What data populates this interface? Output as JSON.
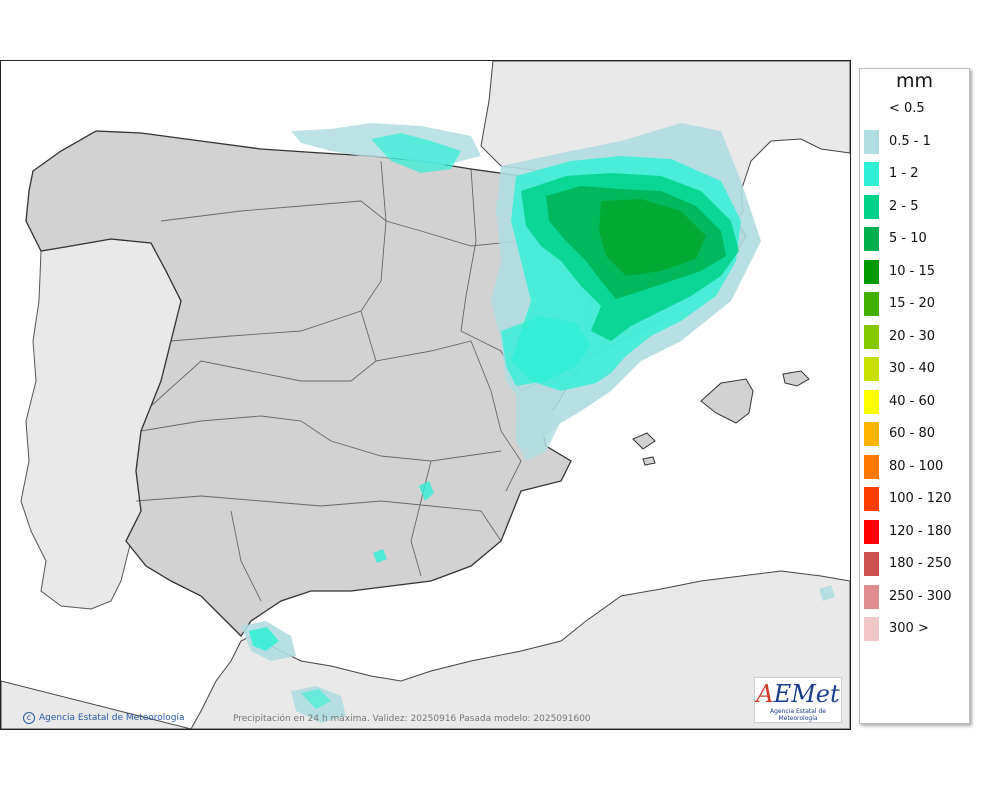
{
  "map": {
    "credit": "Agencia Estatal de Meteorología",
    "caption": "Precipitación en 24 h máxima. Validez: 20250916 Pasada modelo: 2025091600",
    "logo": {
      "text_main": "AEMet",
      "text_sub": "Agencia Estatal de Meteorología"
    }
  },
  "legend": {
    "unit": "mm",
    "items": [
      {
        "label": "< 0.5",
        "color": "#ffffff"
      },
      {
        "label": "0.5 - 1",
        "color": "#b0dde1"
      },
      {
        "label": "1 - 2",
        "color": "#2ff0d4"
      },
      {
        "label": "2 - 5",
        "color": "#00d28a"
      },
      {
        "label": "5 - 10",
        "color": "#00b050"
      },
      {
        "label": "10 - 15",
        "color": "#009a00"
      },
      {
        "label": "15 - 20",
        "color": "#40b000"
      },
      {
        "label": "20 - 30",
        "color": "#86c800"
      },
      {
        "label": "30 - 40",
        "color": "#c8e000"
      },
      {
        "label": "40 - 60",
        "color": "#ffff00"
      },
      {
        "label": "60 - 80",
        "color": "#ffb400"
      },
      {
        "label": "80 - 100",
        "color": "#ff7800"
      },
      {
        "label": "100 - 120",
        "color": "#ff3c00"
      },
      {
        "label": "120 - 180",
        "color": "#ff0000"
      },
      {
        "label": "180 - 250",
        "color": "#cc5050"
      },
      {
        "label": "250 - 300",
        "color": "#e08c8c"
      },
      {
        "label": "300 >",
        "color": "#f0c8c8"
      }
    ]
  }
}
